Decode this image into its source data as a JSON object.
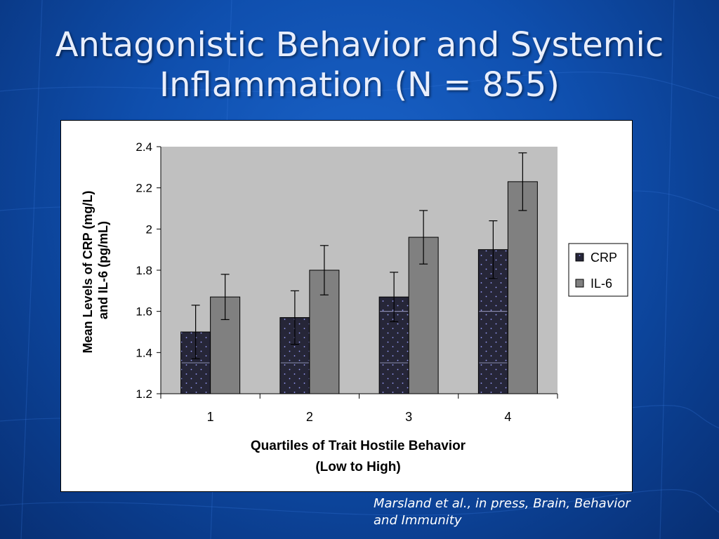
{
  "slide": {
    "title_line1": "Antagonistic Behavior and Systemic",
    "title_line2": "Inflammation (N = 855)",
    "citation_line1": "Marsland et al., in press, Brain, Behavior",
    "citation_line2": "and Immunity"
  },
  "colors": {
    "background": "#0f4fae",
    "plot_area": "#c0c0c0",
    "crp_bar": "#262638",
    "crp_dots": "#9aa0ff",
    "il6_bar": "#808080"
  },
  "chart_data": {
    "type": "bar",
    "categories": [
      "1",
      "2",
      "3",
      "4"
    ],
    "series": [
      {
        "name": "CRP",
        "values": [
          1.5,
          1.57,
          1.67,
          1.9
        ],
        "error": [
          0.13,
          0.13,
          0.12,
          0.14
        ]
      },
      {
        "name": "IL-6",
        "values": [
          1.67,
          1.8,
          1.96,
          2.23
        ],
        "error": [
          0.11,
          0.12,
          0.13,
          0.14
        ]
      }
    ],
    "ylim": [
      1.2,
      2.4
    ],
    "yticks": [
      "1.2",
      "1.4",
      "1.6",
      "1.8",
      "2",
      "2.2",
      "2.4"
    ],
    "ylabel_line1": "Mean Levels of CRP (mg/L)",
    "ylabel_line2": "and IL-6 (pg/mL)",
    "xlabel_line1": "Quartiles of Trait Hostile Behavior",
    "xlabel_line2": "(Low to High)",
    "legend_position": "right",
    "grid": false
  }
}
